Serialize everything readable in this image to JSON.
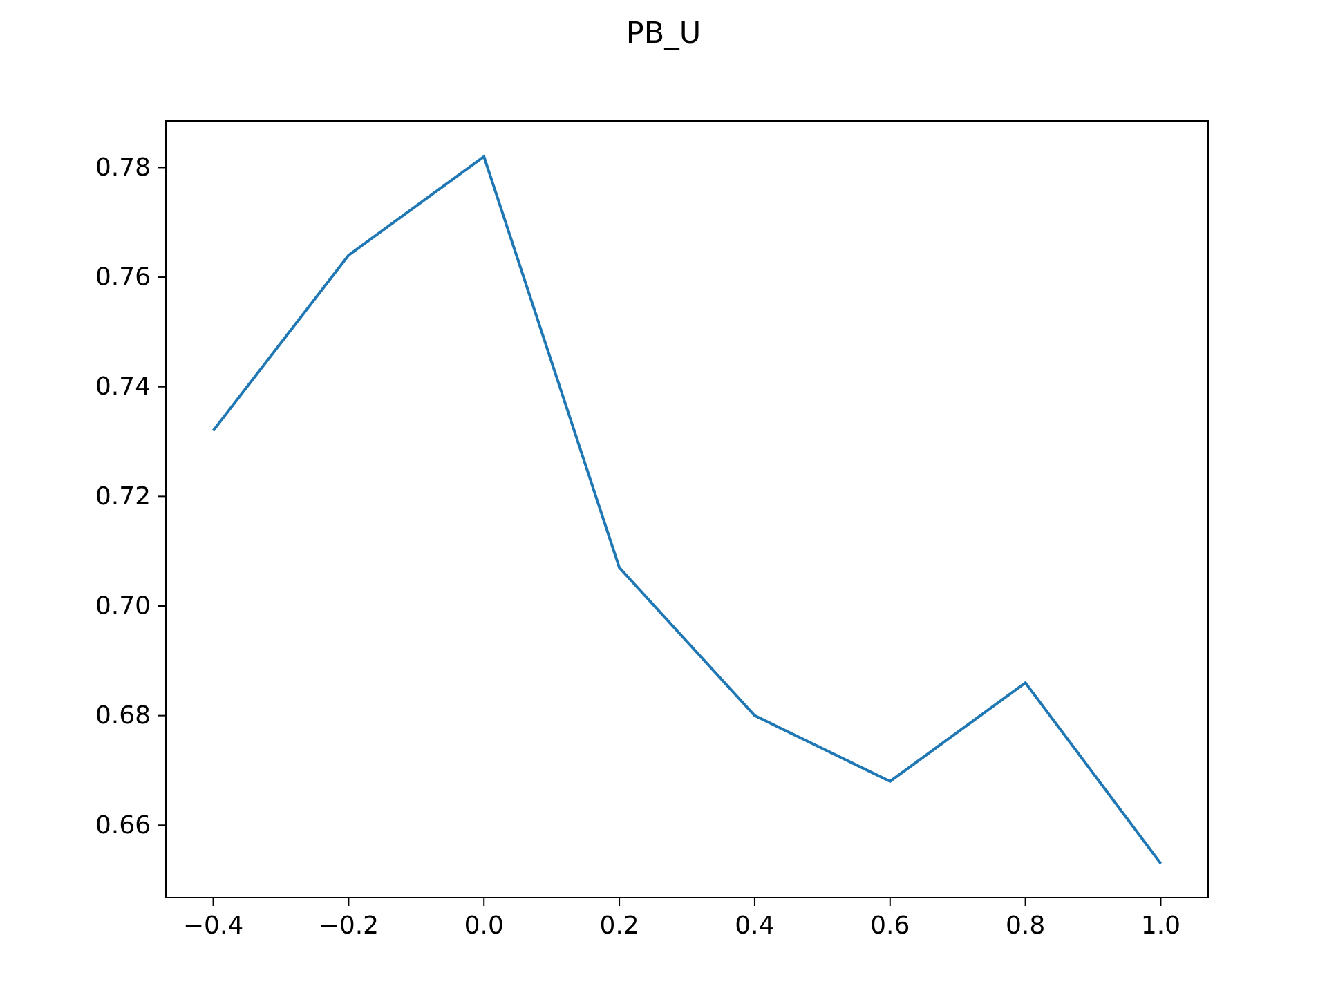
{
  "chart_data": {
    "type": "line",
    "title": "PB_U",
    "xlabel": "",
    "ylabel": "",
    "x": [
      -0.4,
      -0.2,
      0.0,
      0.2,
      0.4,
      0.6,
      0.8,
      1.0
    ],
    "series": [
      {
        "values": [
          0.732,
          0.764,
          0.782,
          0.707,
          0.68,
          0.668,
          0.686,
          0.653
        ],
        "color": "#1f77b4"
      }
    ],
    "xlim": [
      -0.47,
      1.07
    ],
    "ylim": [
      0.6468,
      0.7885
    ],
    "x_ticks": [
      -0.4,
      -0.2,
      0.0,
      0.2,
      0.4,
      0.6,
      0.8,
      1.0
    ],
    "x_tick_labels": [
      "−0.4",
      "−0.2",
      "0.0",
      "0.2",
      "0.4",
      "0.6",
      "0.8",
      "1.0"
    ],
    "y_ticks": [
      0.66,
      0.68,
      0.7,
      0.72,
      0.74,
      0.76,
      0.78
    ],
    "y_tick_labels": [
      "0.66",
      "0.68",
      "0.70",
      "0.72",
      "0.74",
      "0.76",
      "0.78"
    ],
    "grid": false,
    "legend": false
  }
}
